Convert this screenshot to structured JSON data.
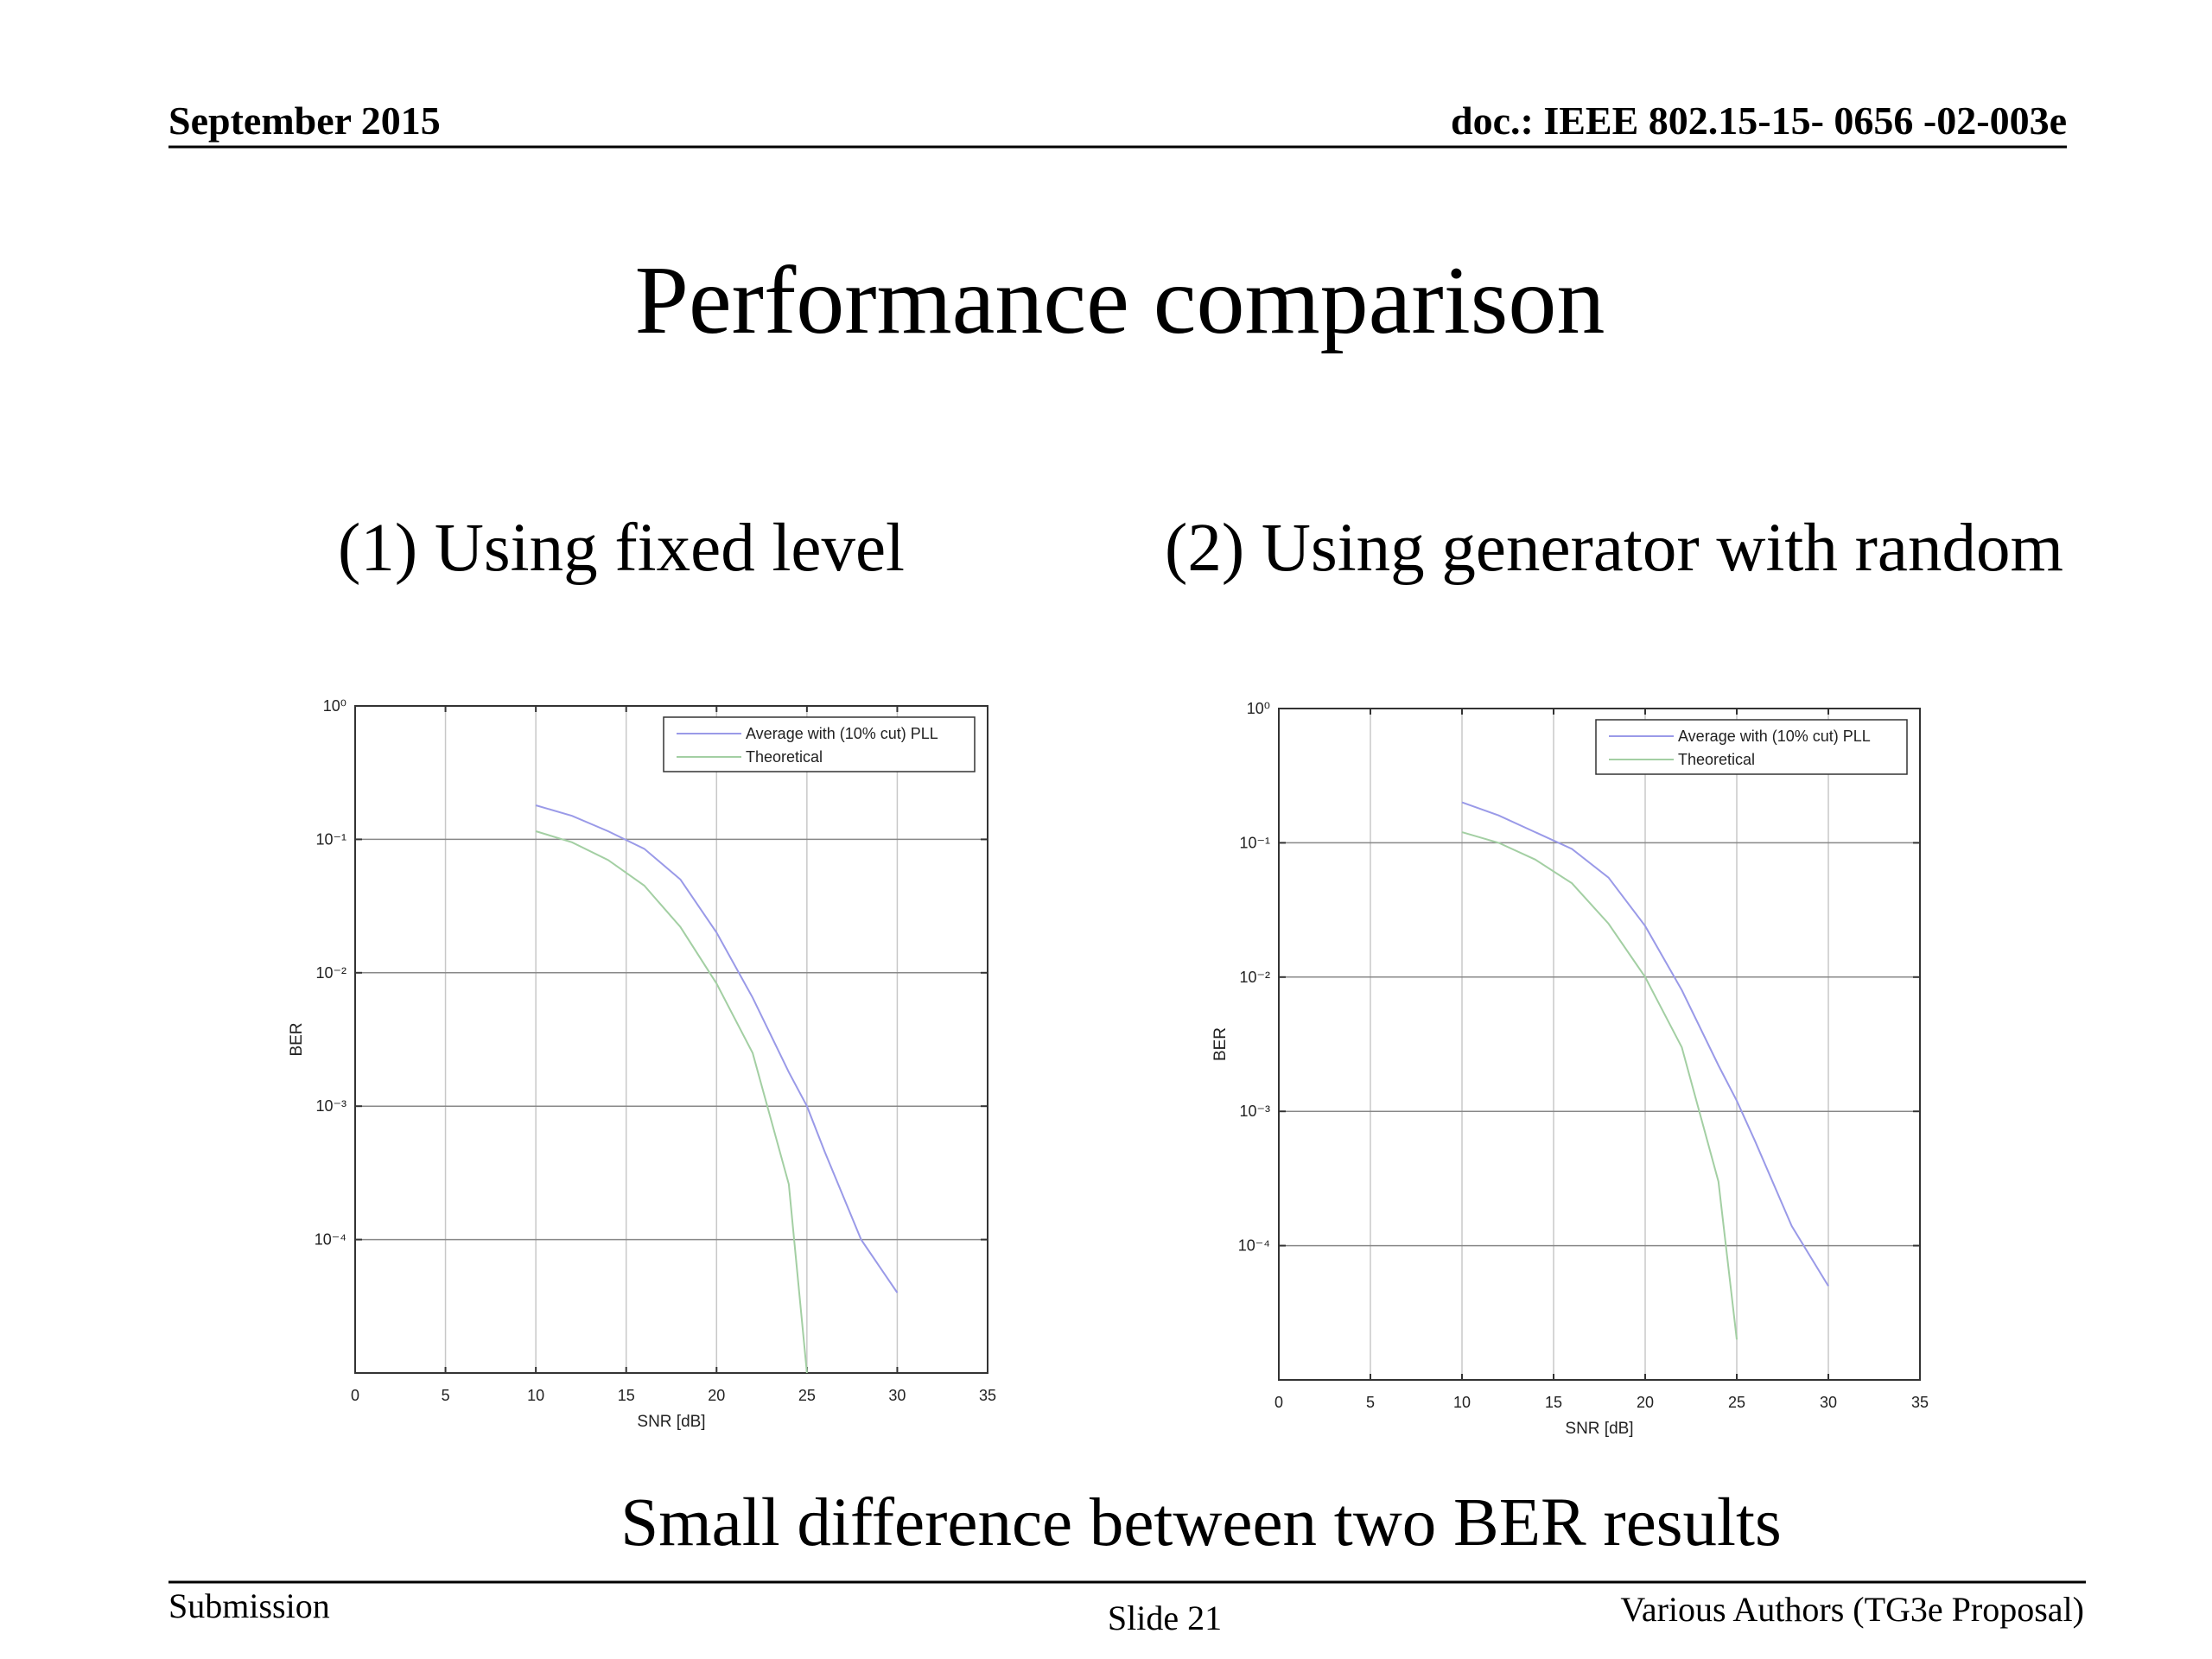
{
  "header": {
    "date": "September 2015",
    "doc": "doc.: IEEE 802.15-15- 0656 -02-003e"
  },
  "title": "Performance comparison",
  "conclusion": "Small difference between two BER results",
  "footer": {
    "left": "Submission",
    "center": "Slide 21",
    "right": "Various Authors (TG3e Proposal)"
  },
  "chart_data": [
    {
      "type": "line",
      "title": "(1) Using fixed level",
      "x_label": "SNR [dB]",
      "y_label": "BER",
      "x": [
        10,
        12,
        14,
        16,
        18,
        20,
        22,
        24,
        25,
        26,
        28,
        30
      ],
      "series": [
        {
          "name": "Average with (10% cut) PLL",
          "color": "#9a9ae8",
          "values": [
            0.18,
            0.15,
            0.115,
            0.085,
            0.05,
            0.02,
            0.0065,
            0.0018,
            0.001,
            0.00045,
            0.0001,
            4e-05
          ]
        },
        {
          "name": "Theoretical",
          "color": "#a3cfa3",
          "values": [
            0.115,
            0.095,
            0.07,
            0.045,
            0.022,
            0.0083,
            0.0025,
            0.00026,
            1e-05,
            null,
            null,
            null
          ]
        }
      ],
      "xlim": [
        0,
        35
      ],
      "xticks": [
        0,
        5,
        10,
        15,
        20,
        25,
        30,
        35
      ],
      "ylim": [
        1e-05,
        1
      ],
      "log_y": true,
      "yticks": [
        {
          "value": 1,
          "label": "10⁰"
        },
        {
          "value": 0.1,
          "label": "10⁻¹"
        },
        {
          "value": 0.01,
          "label": "10⁻²"
        },
        {
          "value": 0.001,
          "label": "10⁻³"
        },
        {
          "value": 0.0001,
          "label": "10⁻⁴"
        }
      ],
      "grid": true,
      "legend": "upper right"
    },
    {
      "type": "line",
      "title": "(2) Using generator with random",
      "x_label": "SNR [dB]",
      "y_label": "BER",
      "x": [
        10,
        12,
        14,
        16,
        18,
        20,
        22,
        24,
        25,
        26,
        28,
        30
      ],
      "series": [
        {
          "name": "Average with (10% cut) PLL",
          "color": "#9a9ae8",
          "values": [
            0.2,
            0.16,
            0.12,
            0.09,
            0.055,
            0.024,
            0.008,
            0.0022,
            0.0012,
            0.0006,
            0.00014,
            5e-05
          ]
        },
        {
          "name": "Theoretical",
          "color": "#a3cfa3",
          "values": [
            0.12,
            0.1,
            0.075,
            0.05,
            0.025,
            0.01,
            0.003,
            0.0003,
            2e-05,
            null,
            null,
            null
          ]
        }
      ],
      "xlim": [
        0,
        35
      ],
      "xticks": [
        0,
        5,
        10,
        15,
        20,
        25,
        30,
        35
      ],
      "ylim": [
        1e-05,
        1
      ],
      "log_y": true,
      "yticks": [
        {
          "value": 1,
          "label": "10⁰"
        },
        {
          "value": 0.1,
          "label": "10⁻¹"
        },
        {
          "value": 0.01,
          "label": "10⁻²"
        },
        {
          "value": 0.001,
          "label": "10⁻³"
        },
        {
          "value": 0.0001,
          "label": "10⁻⁴"
        }
      ],
      "grid": true,
      "legend": "upper right"
    }
  ]
}
